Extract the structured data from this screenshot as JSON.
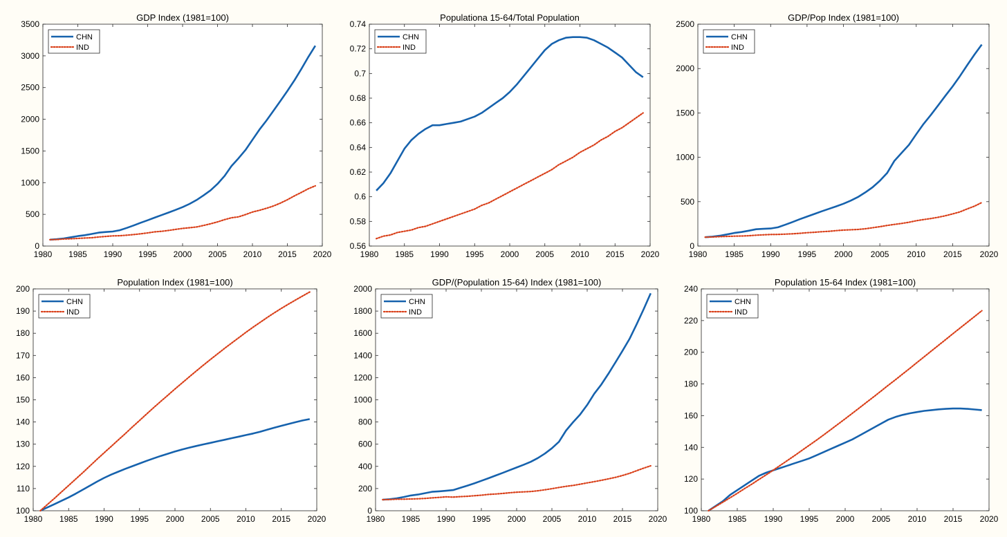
{
  "series_colors": {
    "CHN": "#1662ad",
    "IND": "#d9401a"
  },
  "chart_data": [
    {
      "type": "line",
      "title": "GDP Index  (1981=100)",
      "xlim": [
        1980,
        2020
      ],
      "ylim": [
        0,
        3500
      ],
      "x_ticks": [
        "1980",
        "1985",
        "1990",
        "1995",
        "2000",
        "2005",
        "2010",
        "2015",
        "2020"
      ],
      "y_ticks": [
        "0",
        "500",
        "1000",
        "1500",
        "2000",
        "2500",
        "3000",
        "3500"
      ],
      "legend": {
        "position": "top-left",
        "entries": [
          "CHN",
          "IND"
        ]
      },
      "x": [
        1981,
        1982,
        1983,
        1984,
        1985,
        1986,
        1987,
        1988,
        1989,
        1990,
        1991,
        1992,
        1993,
        1994,
        1995,
        1996,
        1997,
        1998,
        1999,
        2000,
        2001,
        2002,
        2003,
        2004,
        2005,
        2006,
        2007,
        2008,
        2009,
        2010,
        2011,
        2012,
        2013,
        2014,
        2015,
        2016,
        2017,
        2018,
        2019
      ],
      "series": [
        {
          "name": "CHN",
          "style": "solid",
          "values": [
            100,
            108,
            120,
            138,
            157,
            171,
            191,
            212,
            221,
            229,
            250,
            286,
            325,
            367,
            407,
            448,
            489,
            529,
            570,
            614,
            665,
            726,
            799,
            879,
            980,
            1104,
            1262,
            1384,
            1515,
            1676,
            1836,
            1979,
            2133,
            2289,
            2447,
            2612,
            2793,
            2983,
            3160
          ]
        },
        {
          "name": "IND",
          "style": "dotted",
          "values": [
            100,
            103,
            111,
            115,
            120,
            126,
            131,
            143,
            152,
            160,
            162,
            171,
            181,
            193,
            207,
            223,
            232,
            246,
            263,
            278,
            289,
            301,
            325,
            351,
            381,
            417,
            446,
            460,
            496,
            536,
            564,
            595,
            631,
            677,
            730,
            790,
            846,
            904,
            950
          ]
        }
      ]
    },
    {
      "type": "line",
      "title": "Populationa 15-64/Total Population",
      "xlim": [
        1980,
        2020
      ],
      "ylim": [
        0.56,
        0.74
      ],
      "x_ticks": [
        "1980",
        "1985",
        "1990",
        "1995",
        "2000",
        "2005",
        "2010",
        "2015",
        "2020"
      ],
      "y_ticks": [
        "0.56",
        "0.58",
        "0.6",
        "0.62",
        "0.64",
        "0.66",
        "0.68",
        "0.7",
        "0.72",
        "0.74"
      ],
      "legend": {
        "position": "top-left",
        "entries": [
          "CHN",
          "IND"
        ]
      },
      "x": [
        1981,
        1982,
        1983,
        1984,
        1985,
        1986,
        1987,
        1988,
        1989,
        1990,
        1991,
        1992,
        1993,
        1994,
        1995,
        1996,
        1997,
        1998,
        1999,
        2000,
        2001,
        2002,
        2003,
        2004,
        2005,
        2006,
        2007,
        2008,
        2009,
        2010,
        2011,
        2012,
        2013,
        2014,
        2015,
        2016,
        2017,
        2018,
        2019
      ],
      "series": [
        {
          "name": "CHN",
          "style": "solid",
          "values": [
            0.605,
            0.611,
            0.619,
            0.629,
            0.639,
            0.646,
            0.651,
            0.655,
            0.658,
            0.658,
            0.659,
            0.66,
            0.661,
            0.663,
            0.665,
            0.668,
            0.672,
            0.676,
            0.68,
            0.685,
            0.691,
            0.698,
            0.705,
            0.712,
            0.719,
            0.724,
            0.727,
            0.729,
            0.7295,
            0.7295,
            0.729,
            0.727,
            0.724,
            0.721,
            0.717,
            0.713,
            0.707,
            0.701,
            0.697
          ]
        },
        {
          "name": "IND",
          "style": "dotted",
          "values": [
            0.566,
            0.568,
            0.569,
            0.571,
            0.572,
            0.573,
            0.575,
            0.576,
            0.578,
            0.58,
            0.582,
            0.584,
            0.586,
            0.588,
            0.59,
            0.593,
            0.595,
            0.598,
            0.601,
            0.604,
            0.607,
            0.61,
            0.613,
            0.616,
            0.619,
            0.622,
            0.626,
            0.629,
            0.632,
            0.636,
            0.639,
            0.642,
            0.646,
            0.649,
            0.653,
            0.656,
            0.66,
            0.664,
            0.668
          ]
        }
      ]
    },
    {
      "type": "line",
      "title": "GDP/Pop Index  (1981=100)",
      "xlim": [
        1980,
        2020
      ],
      "ylim": [
        0,
        2500
      ],
      "x_ticks": [
        "1980",
        "1985",
        "1990",
        "1995",
        "2000",
        "2005",
        "2010",
        "2015",
        "2020"
      ],
      "y_ticks": [
        "0",
        "500",
        "1000",
        "1500",
        "2000",
        "2500"
      ],
      "legend": {
        "position": "top-left",
        "entries": [
          "CHN",
          "IND"
        ]
      },
      "x": [
        1981,
        1982,
        1983,
        1984,
        1985,
        1986,
        1987,
        1988,
        1989,
        1990,
        1991,
        1992,
        1993,
        1994,
        1995,
        1996,
        1997,
        1998,
        1999,
        2000,
        2001,
        2002,
        2003,
        2004,
        2005,
        2006,
        2007,
        2008,
        2009,
        2010,
        2011,
        2012,
        2013,
        2014,
        2015,
        2016,
        2017,
        2018,
        2019
      ],
      "series": [
        {
          "name": "CHN",
          "style": "solid",
          "values": [
            100,
            106,
            116,
            131,
            147,
            158,
            173,
            189,
            194,
            198,
            211,
            240,
            270,
            302,
            332,
            361,
            391,
            419,
            447,
            477,
            512,
            552,
            604,
            662,
            735,
            823,
            960,
            1051,
            1140,
            1260,
            1375,
            1477,
            1583,
            1692,
            1799,
            1914,
            2037,
            2158,
            2270
          ]
        },
        {
          "name": "IND",
          "style": "dotted",
          "values": [
            100,
            102,
            106,
            108,
            111,
            113,
            116,
            122,
            126,
            130,
            131,
            134,
            138,
            143,
            150,
            155,
            161,
            166,
            174,
            180,
            183,
            187,
            195,
            206,
            218,
            232,
            244,
            255,
            268,
            285,
            298,
            310,
            324,
            341,
            362,
            385,
            418,
            449,
            490
          ]
        }
      ]
    },
    {
      "type": "line",
      "title": "Population Index  (1981=100)",
      "xlim": [
        1980,
        2020
      ],
      "ylim": [
        100,
        200
      ],
      "x_ticks": [
        "1980",
        "1985",
        "1990",
        "1995",
        "2000",
        "2005",
        "2010",
        "2015",
        "2020"
      ],
      "y_ticks": [
        "100",
        "110",
        "120",
        "130",
        "140",
        "150",
        "160",
        "170",
        "180",
        "190",
        "200"
      ],
      "legend": {
        "position": "top-left",
        "entries": [
          "CHN",
          "IND"
        ]
      },
      "x": [
        1981,
        1982,
        1983,
        1984,
        1985,
        1986,
        1987,
        1988,
        1989,
        1990,
        1991,
        1992,
        1993,
        1994,
        1995,
        1996,
        1997,
        1998,
        1999,
        2000,
        2001,
        2002,
        2003,
        2004,
        2005,
        2006,
        2007,
        2008,
        2009,
        2010,
        2011,
        2012,
        2013,
        2014,
        2015,
        2016,
        2017,
        2018,
        2019
      ],
      "series": [
        {
          "name": "CHN",
          "style": "solid",
          "values": [
            100,
            101.5,
            103,
            104.5,
            106,
            107.7,
            109.5,
            111.3,
            113.1,
            114.8,
            116.3,
            117.6,
            118.9,
            120.1,
            121.3,
            122.5,
            123.6,
            124.7,
            125.7,
            126.7,
            127.6,
            128.4,
            129.2,
            129.9,
            130.6,
            131.3,
            132,
            132.7,
            133.4,
            134.1,
            134.8,
            135.6,
            136.5,
            137.4,
            138.3,
            139.1,
            139.9,
            140.7,
            141.3
          ]
        },
        {
          "name": "IND",
          "style": "dotted",
          "values": [
            100,
            102.8,
            105.6,
            108.5,
            111.4,
            114.3,
            117.2,
            120.2,
            123.2,
            126.1,
            129,
            131.9,
            134.8,
            137.8,
            140.7,
            143.6,
            146.5,
            149.3,
            152.1,
            154.9,
            157.6,
            160.3,
            163,
            165.6,
            168.2,
            170.7,
            173.2,
            175.6,
            178,
            180.4,
            182.7,
            184.9,
            187.1,
            189.2,
            191.2,
            193.1,
            195,
            196.8,
            198.6
          ]
        }
      ]
    },
    {
      "type": "line",
      "title": "GDP/(Population 15-64) Index  (1981=100)",
      "xlim": [
        1980,
        2020
      ],
      "ylim": [
        0,
        2000
      ],
      "x_ticks": [
        "1980",
        "1985",
        "1990",
        "1995",
        "2000",
        "2005",
        "2010",
        "2015",
        "2020"
      ],
      "y_ticks": [
        "0",
        "200",
        "400",
        "600",
        "800",
        "1000",
        "1200",
        "1400",
        "1600",
        "1800",
        "2000"
      ],
      "legend": {
        "position": "top-left",
        "entries": [
          "CHN",
          "IND"
        ]
      },
      "x": [
        1981,
        1982,
        1983,
        1984,
        1985,
        1986,
        1987,
        1988,
        1989,
        1990,
        1991,
        1992,
        1993,
        1994,
        1995,
        1996,
        1997,
        1998,
        1999,
        2000,
        2001,
        2002,
        2003,
        2004,
        2005,
        2006,
        2007,
        2008,
        2009,
        2010,
        2011,
        2012,
        2013,
        2014,
        2015,
        2016,
        2017,
        2018,
        2019
      ],
      "series": [
        {
          "name": "CHN",
          "style": "solid",
          "values": [
            100,
            104,
            112,
            124,
            138,
            146,
            158,
            171,
            175,
            180,
            186,
            206,
            226,
            247,
            270,
            293,
            317,
            341,
            366,
            390,
            415,
            441,
            475,
            515,
            563,
            622,
            723,
            798,
            868,
            954,
            1055,
            1138,
            1234,
            1337,
            1441,
            1549,
            1680,
            1816,
            1960
          ]
        },
        {
          "name": "IND",
          "style": "dotted",
          "values": [
            100,
            101,
            104,
            104,
            106,
            108,
            111,
            116,
            120,
            125,
            123,
            127,
            130,
            135,
            140,
            147,
            151,
            156,
            162,
            167,
            170,
            173,
            180,
            189,
            199,
            210,
            220,
            228,
            239,
            251,
            262,
            274,
            287,
            301,
            318,
            337,
            361,
            384,
            405
          ]
        }
      ]
    },
    {
      "type": "line",
      "title": "Population 15-64 Index  (1981=100)",
      "xlim": [
        1980,
        2020
      ],
      "ylim": [
        100,
        240
      ],
      "x_ticks": [
        "1980",
        "1985",
        "1990",
        "1995",
        "2000",
        "2005",
        "2010",
        "2015",
        "2020"
      ],
      "y_ticks": [
        "100",
        "120",
        "140",
        "160",
        "180",
        "200",
        "220",
        "240"
      ],
      "legend": {
        "position": "top-left",
        "entries": [
          "CHN",
          "IND"
        ]
      },
      "x": [
        1981,
        1982,
        1983,
        1984,
        1985,
        1986,
        1987,
        1988,
        1989,
        1990,
        1991,
        1992,
        1993,
        1994,
        1995,
        1996,
        1997,
        1998,
        1999,
        2000,
        2001,
        2002,
        2003,
        2004,
        2005,
        2006,
        2007,
        2008,
        2009,
        2010,
        2011,
        2012,
        2013,
        2014,
        2015,
        2016,
        2017,
        2018,
        2019
      ],
      "series": [
        {
          "name": "CHN",
          "style": "solid",
          "values": [
            100,
            103,
            106,
            110,
            113,
            116,
            119,
            122,
            124,
            125.5,
            127,
            128.5,
            130,
            131.5,
            133,
            135,
            137,
            139,
            141,
            143,
            145,
            147.5,
            150,
            152.5,
            155,
            157.5,
            159.2,
            160.5,
            161.5,
            162.3,
            163,
            163.5,
            164,
            164.3,
            164.5,
            164.5,
            164.3,
            163.9,
            163.5
          ]
        },
        {
          "name": "IND",
          "style": "dotted",
          "values": [
            100,
            102.7,
            105.4,
            108.2,
            111,
            113.9,
            116.7,
            119.7,
            122.6,
            125.6,
            128.7,
            131.8,
            134.9,
            138.1,
            141.3,
            144.5,
            147.8,
            151.2,
            154.6,
            158,
            161.5,
            165,
            168.5,
            172,
            175.6,
            179.2,
            182.7,
            186.3,
            189.9,
            193.6,
            197.2,
            200.9,
            204.5,
            208.1,
            211.8,
            215.4,
            219,
            222.6,
            226.2
          ]
        }
      ]
    }
  ]
}
